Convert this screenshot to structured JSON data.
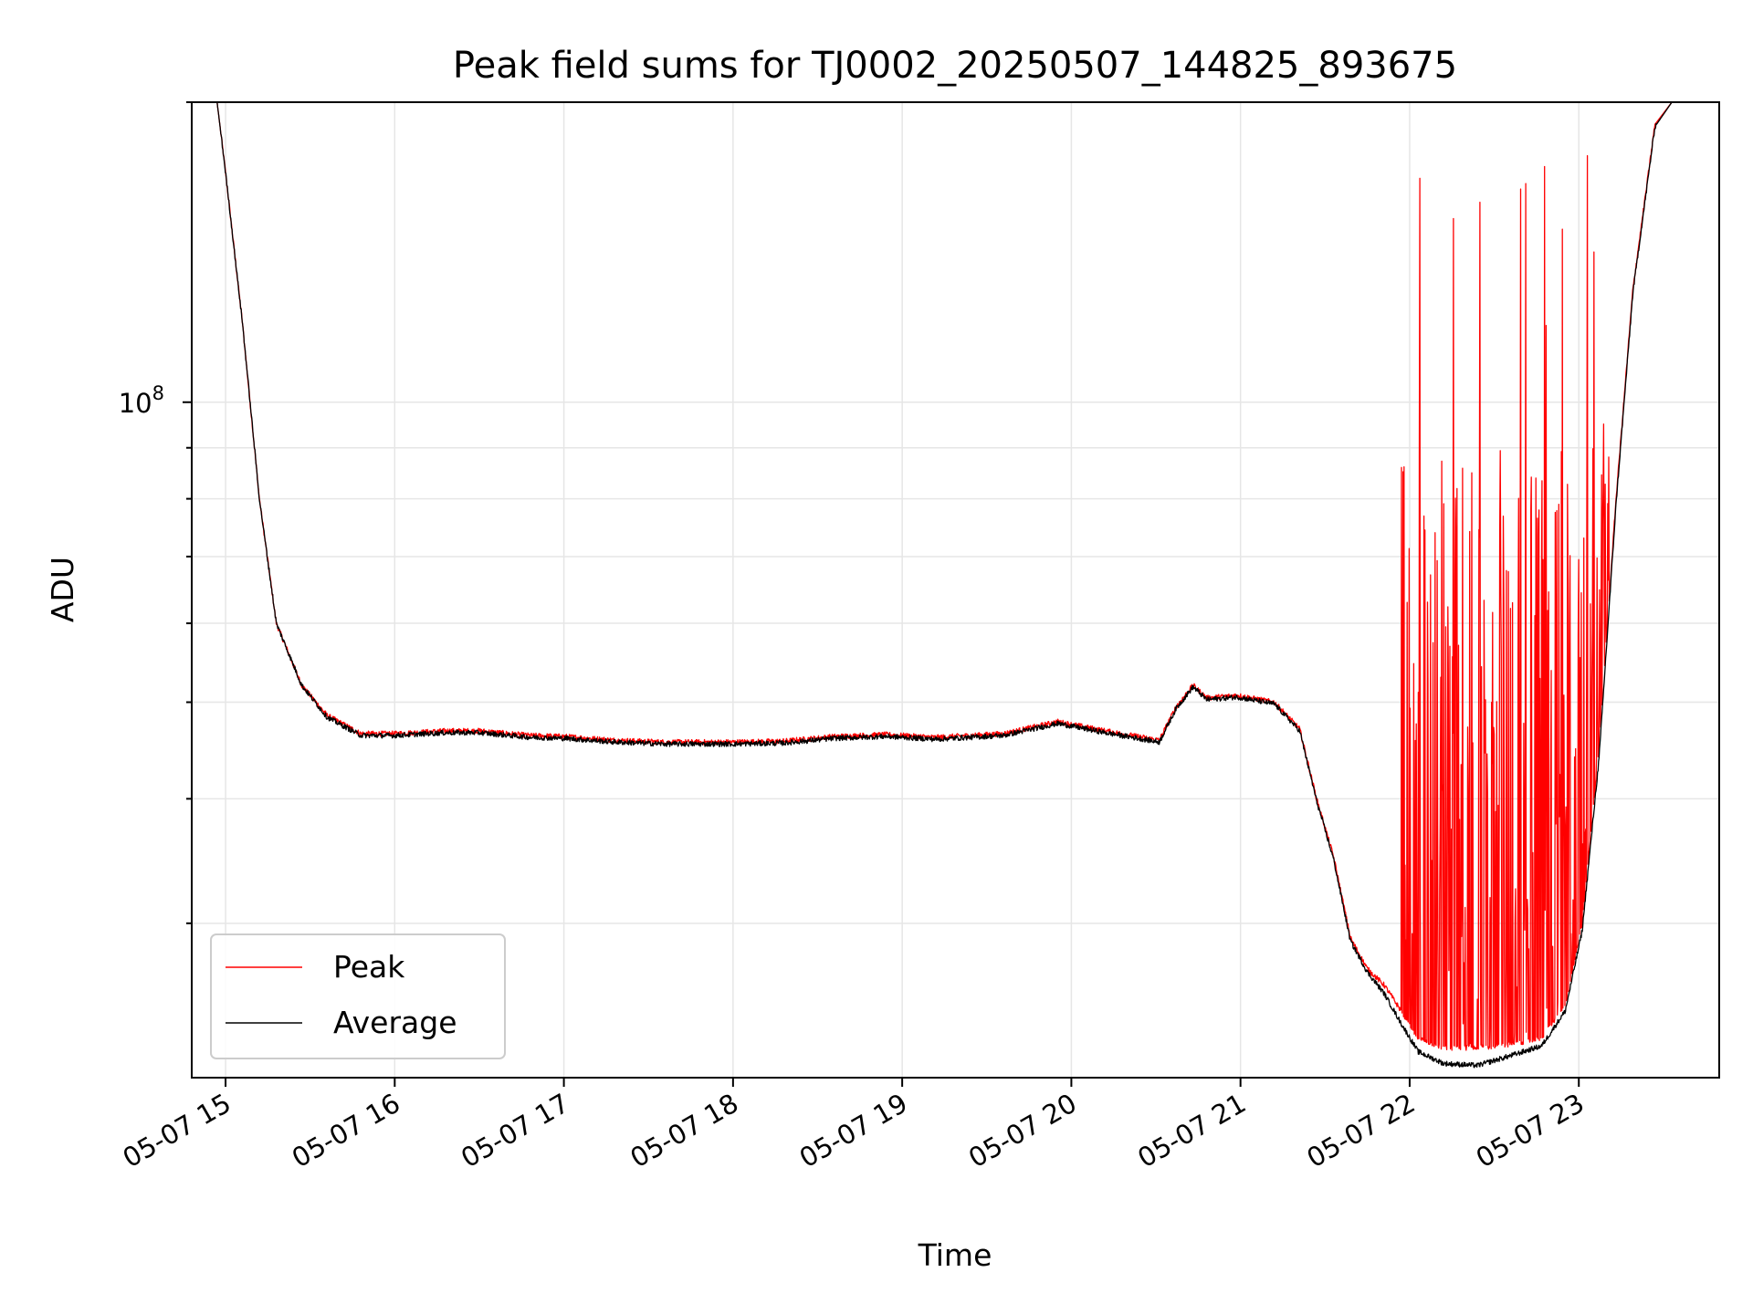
{
  "chart_data": {
    "type": "line",
    "title": "Peak field sums for TJ0002_20250507_144825_893675",
    "xlabel": "Time",
    "ylabel": "ADU",
    "x_ticks": [
      "05-07 15",
      "05-07 16",
      "05-07 17",
      "05-07 18",
      "05-07 19",
      "05-07 20",
      "05-07 21",
      "05-07 22",
      "05-07 23"
    ],
    "y_tick": {
      "base": "10",
      "exp": "8"
    },
    "y_scale": "log",
    "ylim": [
      21000000,
      200000000
    ],
    "xlim_hours": [
      14.8,
      23.83
    ],
    "grid": true,
    "legend_position": "lower-left",
    "series": [
      {
        "name": "Peak",
        "color": "#ff0000",
        "points": [
          [
            14.8,
            200000000
          ],
          [
            14.95,
            200000000
          ],
          [
            15.0,
            170000000
          ],
          [
            15.1,
            120000000
          ],
          [
            15.2,
            80000000
          ],
          [
            15.3,
            60000000
          ],
          [
            15.45,
            52000000
          ],
          [
            15.6,
            48500000
          ],
          [
            15.8,
            46500000
          ],
          [
            16.0,
            46500000
          ],
          [
            16.3,
            46800000
          ],
          [
            16.5,
            46800000
          ],
          [
            16.8,
            46300000
          ],
          [
            17.0,
            46200000
          ],
          [
            17.3,
            45800000
          ],
          [
            17.6,
            45600000
          ],
          [
            18.0,
            45600000
          ],
          [
            18.3,
            45700000
          ],
          [
            18.6,
            46200000
          ],
          [
            18.9,
            46400000
          ],
          [
            19.2,
            46100000
          ],
          [
            19.6,
            46500000
          ],
          [
            19.92,
            47800000
          ],
          [
            20.2,
            46800000
          ],
          [
            20.52,
            45800000
          ],
          [
            20.62,
            49500000
          ],
          [
            20.72,
            52000000
          ],
          [
            20.8,
            50500000
          ],
          [
            20.98,
            50800000
          ],
          [
            21.2,
            50000000
          ],
          [
            21.35,
            47000000
          ],
          [
            21.45,
            40000000
          ],
          [
            21.55,
            35000000
          ],
          [
            21.65,
            29000000
          ],
          [
            21.75,
            27000000
          ],
          [
            21.85,
            26000000
          ],
          [
            21.95,
            24500000
          ],
          [
            22.05,
            23000000
          ],
          [
            22.2,
            22500000
          ],
          [
            22.4,
            22500000
          ],
          [
            22.6,
            22700000
          ],
          [
            22.78,
            23000000
          ],
          [
            22.92,
            24800000
          ],
          [
            23.02,
            30000000
          ],
          [
            23.12,
            45000000
          ],
          [
            23.22,
            80000000
          ],
          [
            23.32,
            130000000
          ],
          [
            23.45,
            190000000
          ],
          [
            23.55,
            200000000
          ],
          [
            23.83,
            200000000
          ]
        ],
        "spikes": {
          "x_range": [
            21.95,
            23.18
          ],
          "peak_max": 178000000,
          "typical_max": 90000000
        }
      },
      {
        "name": "Average",
        "color": "#000000",
        "points": [
          [
            14.8,
            200000000
          ],
          [
            14.95,
            200000000
          ],
          [
            15.0,
            170000000
          ],
          [
            15.1,
            120000000
          ],
          [
            15.2,
            80000000
          ],
          [
            15.3,
            60000000
          ],
          [
            15.45,
            52000000
          ],
          [
            15.6,
            48300000
          ],
          [
            15.8,
            46300000
          ],
          [
            16.0,
            46300000
          ],
          [
            16.3,
            46600000
          ],
          [
            16.5,
            46600000
          ],
          [
            16.8,
            46100000
          ],
          [
            17.0,
            46000000
          ],
          [
            17.3,
            45600000
          ],
          [
            17.6,
            45400000
          ],
          [
            18.0,
            45400000
          ],
          [
            18.3,
            45500000
          ],
          [
            18.6,
            46000000
          ],
          [
            18.9,
            46200000
          ],
          [
            19.2,
            45900000
          ],
          [
            19.6,
            46300000
          ],
          [
            19.92,
            47600000
          ],
          [
            20.2,
            46600000
          ],
          [
            20.52,
            45600000
          ],
          [
            20.62,
            49300000
          ],
          [
            20.72,
            51800000
          ],
          [
            20.8,
            50300000
          ],
          [
            20.98,
            50600000
          ],
          [
            21.2,
            49800000
          ],
          [
            21.35,
            46800000
          ],
          [
            21.45,
            39800000
          ],
          [
            21.55,
            34800000
          ],
          [
            21.65,
            28800000
          ],
          [
            21.75,
            26800000
          ],
          [
            21.85,
            25500000
          ],
          [
            21.95,
            23800000
          ],
          [
            22.05,
            22300000
          ],
          [
            22.2,
            21700000
          ],
          [
            22.4,
            21600000
          ],
          [
            22.6,
            22100000
          ],
          [
            22.78,
            22600000
          ],
          [
            22.92,
            24500000
          ],
          [
            23.02,
            29500000
          ],
          [
            23.12,
            44000000
          ],
          [
            23.22,
            79000000
          ],
          [
            23.32,
            129000000
          ],
          [
            23.45,
            189000000
          ],
          [
            23.55,
            200000000
          ],
          [
            23.83,
            200000000
          ]
        ]
      }
    ]
  }
}
